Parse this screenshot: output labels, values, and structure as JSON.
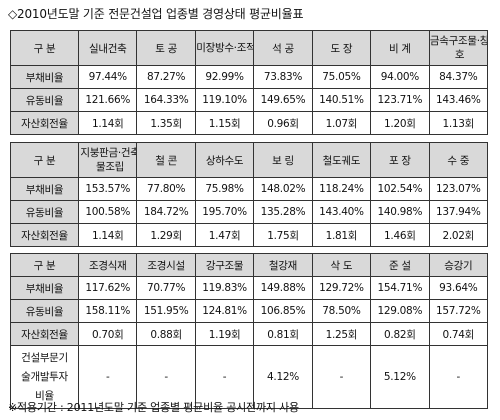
{
  "title": "◇2010년도말 기준 전문건설업 업종별 경영상태 평균비율표",
  "table1": {
    "header": [
      "구 분",
      "실내건축",
      "토 공",
      "미장방수·조적",
      "석 공",
      "도 장",
      "비 계",
      "금속구조물·창호"
    ],
    "rows": [
      [
        "부채비율",
        "97.44%",
        "87.27%",
        "92.99%",
        "73.83%",
        "75.05%",
        "94.00%",
        "84.37%"
      ],
      [
        "유동비율",
        "121.66%",
        "164.33%",
        "119.10%",
        "149.65%",
        "140.51%",
        "123.71%",
        "143.46%"
      ],
      [
        "자산회전율",
        "1.14회",
        "1.35회",
        "1.15회",
        "0.96회",
        "1.07회",
        "1.20회",
        "1.13회"
      ]
    ]
  },
  "table2": {
    "header": [
      "구 분",
      "지붕판금·건축물조립",
      "철 콘",
      "상하수도",
      "보 링",
      "철도궤도",
      "포 장",
      "수 중"
    ],
    "rows": [
      [
        "부채비율",
        "153.57%",
        "77.80%",
        "75.98%",
        "148.02%",
        "118.24%",
        "102.54%",
        "123.07%"
      ],
      [
        "유동비율",
        "100.58%",
        "184.72%",
        "195.70%",
        "135.28%",
        "143.40%",
        "140.98%",
        "137.94%"
      ],
      [
        "자산회전율",
        "1.14회",
        "1.29회",
        "1.47회",
        "1.75회",
        "1.81회",
        "1.46회",
        "2.02회"
      ]
    ]
  },
  "table3": {
    "header": [
      "구 분",
      "조경식재",
      "조경시설",
      "강구조물",
      "철강재",
      "삭 도",
      "준 설",
      "승강기"
    ],
    "rows": [
      [
        "부채비율",
        "117.62%",
        "70.77%",
        "119.83%",
        "149.88%",
        "129.72%",
        "154.71%",
        "93.64%"
      ],
      [
        "유동비율",
        "158.11%",
        "151.95%",
        "124.81%",
        "106.85%",
        "78.50%",
        "129.08%",
        "157.72%"
      ],
      [
        "자산회전율",
        "0.70회",
        "0.88회",
        "1.19회",
        "0.81회",
        "1.25회",
        "0.82회",
        "0.74회"
      ],
      [
        "건설부문기술개발투자비율",
        "-",
        "-",
        "-",
        "4.12%",
        "-",
        "5.12%",
        "-"
      ]
    ]
  },
  "note": "※적용기간 : 2011년도말 기준 업종별 평균비율 공시전까지 사용"
}
